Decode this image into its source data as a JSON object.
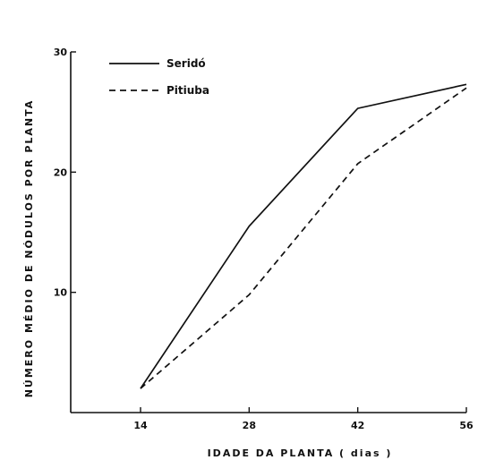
{
  "chart_data": {
    "type": "line",
    "xlabel": "IDADE DA PLANTA   ( dias )",
    "ylabel": "NÚMERO MÉDIO DE NÓDULOS POR PLANTA",
    "x": [
      14,
      28,
      42,
      56
    ],
    "xlim": [
      5,
      56
    ],
    "ylim": [
      0,
      30
    ],
    "yticks": [
      10,
      20,
      30
    ],
    "grid": false,
    "legend_position": "top-left",
    "series": [
      {
        "name": "Seridó",
        "style": "solid",
        "values": [
          2,
          15.5,
          25.3,
          27.3
        ],
        "color": "#111111"
      },
      {
        "name": "Pitiuba",
        "style": "dashed",
        "values": [
          2,
          9.8,
          20.7,
          27.0
        ],
        "color": "#111111"
      }
    ]
  }
}
